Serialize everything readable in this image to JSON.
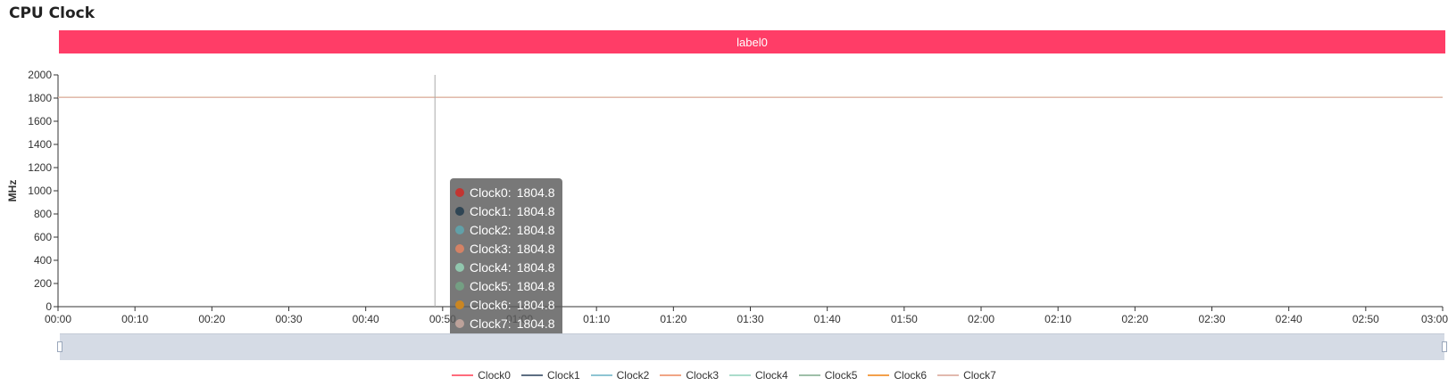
{
  "page": {
    "title": "CPU Clock",
    "banner_label": "label0"
  },
  "chart_data": {
    "type": "line",
    "title": "",
    "xlabel": "",
    "ylabel": "MHz",
    "ylim": [
      0,
      2000
    ],
    "yticks": [
      0,
      200,
      400,
      600,
      800,
      1000,
      1200,
      1400,
      1600,
      1800,
      2000
    ],
    "xlim": [
      "00:00",
      "03:00"
    ],
    "xticks": [
      "00:00",
      "00:10",
      "00:20",
      "00:30",
      "00:40",
      "00:50",
      "01:00",
      "01:10",
      "01:20",
      "01:30",
      "01:40",
      "01:50",
      "02:00",
      "02:10",
      "02:20",
      "02:30",
      "02:40",
      "02:50",
      "03:00"
    ],
    "x": [
      "00:00",
      "03:00"
    ],
    "series": [
      {
        "name": "Clock0",
        "color": "#ff6b7c",
        "values": [
          1804.8,
          1804.8
        ]
      },
      {
        "name": "Clock1",
        "color": "#5d6e82",
        "values": [
          1804.8,
          1804.8
        ]
      },
      {
        "name": "Clock2",
        "color": "#8ec5d3",
        "values": [
          1804.8,
          1804.8
        ]
      },
      {
        "name": "Clock3",
        "color": "#f0a585",
        "values": [
          1804.8,
          1804.8
        ]
      },
      {
        "name": "Clock4",
        "color": "#abdccb",
        "values": [
          1804.8,
          1804.8
        ]
      },
      {
        "name": "Clock5",
        "color": "#9ebfa8",
        "values": [
          1804.8,
          1804.8
        ]
      },
      {
        "name": "Clock6",
        "color": "#f3a04b",
        "values": [
          1804.8,
          1804.8
        ]
      },
      {
        "name": "Clock7",
        "color": "#e2b9ae",
        "values": [
          1804.8,
          1804.8
        ]
      }
    ],
    "cursor_time": "00:49",
    "cursor_label": "00:50",
    "legend_position": "bottom-center",
    "grid": false
  },
  "tooltip": {
    "rows": [
      {
        "name": "Clock0:",
        "value": "1804.8",
        "color": "#c23531"
      },
      {
        "name": "Clock1:",
        "value": "1804.8",
        "color": "#2f4554"
      },
      {
        "name": "Clock2:",
        "value": "1804.8",
        "color": "#61a0a8"
      },
      {
        "name": "Clock3:",
        "value": "1804.8",
        "color": "#d48265"
      },
      {
        "name": "Clock4:",
        "value": "1804.8",
        "color": "#91c7ae"
      },
      {
        "name": "Clock5:",
        "value": "1804.8",
        "color": "#749f83"
      },
      {
        "name": "Clock6:",
        "value": "1804.8",
        "color": "#ca8622"
      },
      {
        "name": "Clock7:",
        "value": "1804.8",
        "color": "#bda29a"
      }
    ]
  },
  "legend": {
    "items": [
      {
        "label": "Clock0",
        "color": "#ff6b7c"
      },
      {
        "label": "Clock1",
        "color": "#5d6e82"
      },
      {
        "label": "Clock2",
        "color": "#8ec5d3"
      },
      {
        "label": "Clock3",
        "color": "#f0a585"
      },
      {
        "label": "Clock4",
        "color": "#abdccb"
      },
      {
        "label": "Clock5",
        "color": "#9ebfa8"
      },
      {
        "label": "Clock6",
        "color": "#f3a04b"
      },
      {
        "label": "Clock7",
        "color": "#e2b9ae"
      }
    ]
  }
}
